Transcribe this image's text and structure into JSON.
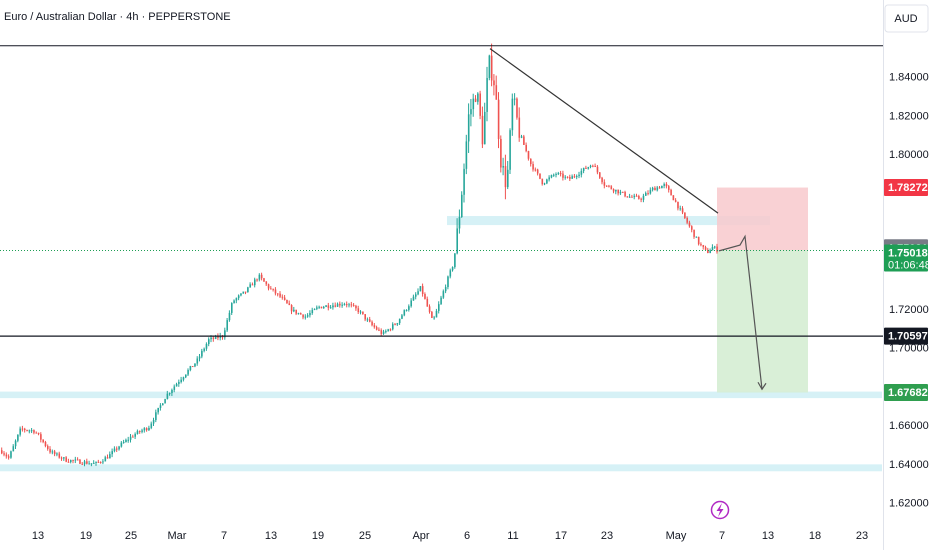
{
  "header": {
    "title": "Euro / Australian Dollar · 4h · PEPPERSTONE",
    "currency": "AUD"
  },
  "colors": {
    "up": "#26a69a",
    "down": "#ef5350",
    "zone": "#c8ecf3",
    "stop": "#f8c9cd",
    "target": "#d5edd3",
    "current": "#1e9e55",
    "stop_label": "#f23645",
    "line": "#131722",
    "tp_label": "#2f9e4f"
  },
  "badges": {
    "stop": "1.78272",
    "entry": "1.75031",
    "current": "1.75018",
    "countdown": "01:06:48",
    "support": "1.70597",
    "target": "1.67682"
  },
  "chart_data": {
    "type": "candlestick",
    "timeframe": "4h",
    "x_ticks": [
      "13",
      "19",
      "25",
      "Mar",
      "7",
      "13",
      "19",
      "25",
      "Apr",
      "6",
      "11",
      "17",
      "23",
      "May",
      "7",
      "13",
      "18",
      "23"
    ],
    "y_ticks": [
      "1.84000",
      "1.82000",
      "1.80000",
      "1.72000",
      "1.70000",
      "1.66000",
      "1.64000",
      "1.62000"
    ],
    "ylim": [
      1.6125,
      1.8605
    ],
    "price_path": [
      [
        0,
        1.647
      ],
      [
        8,
        1.643
      ],
      [
        20,
        1.658
      ],
      [
        34,
        1.657
      ],
      [
        50,
        1.646
      ],
      [
        65,
        1.642
      ],
      [
        80,
        1.641
      ],
      [
        95,
        1.64
      ],
      [
        108,
        1.644
      ],
      [
        118,
        1.649
      ],
      [
        133,
        1.655
      ],
      [
        148,
        1.659
      ],
      [
        165,
        1.675
      ],
      [
        180,
        1.684
      ],
      [
        196,
        1.693
      ],
      [
        208,
        1.704
      ],
      [
        222,
        1.706
      ],
      [
        232,
        1.724
      ],
      [
        245,
        1.729
      ],
      [
        258,
        1.737
      ],
      [
        268,
        1.731
      ],
      [
        280,
        1.726
      ],
      [
        292,
        1.719
      ],
      [
        305,
        1.716
      ],
      [
        318,
        1.721
      ],
      [
        332,
        1.722
      ],
      [
        345,
        1.723
      ],
      [
        358,
        1.719
      ],
      [
        370,
        1.712
      ],
      [
        382,
        1.707
      ],
      [
        396,
        1.713
      ],
      [
        408,
        1.722
      ],
      [
        420,
        1.731
      ],
      [
        432,
        1.713
      ],
      [
        440,
        1.725
      ],
      [
        446,
        1.734
      ],
      [
        453,
        1.744
      ],
      [
        460,
        1.775
      ],
      [
        468,
        1.82
      ],
      [
        476,
        1.833
      ],
      [
        482,
        1.807
      ],
      [
        488,
        1.848
      ],
      [
        494,
        1.836
      ],
      [
        500,
        1.797
      ],
      [
        506,
        1.783
      ],
      [
        512,
        1.83
      ],
      [
        518,
        1.812
      ],
      [
        530,
        1.795
      ],
      [
        542,
        1.785
      ],
      [
        555,
        1.79
      ],
      [
        568,
        1.787
      ],
      [
        580,
        1.791
      ],
      [
        592,
        1.795
      ],
      [
        604,
        1.784
      ],
      [
        616,
        1.781
      ],
      [
        628,
        1.778
      ],
      [
        640,
        1.777
      ],
      [
        652,
        1.782
      ],
      [
        664,
        1.784
      ],
      [
        674,
        1.776
      ],
      [
        686,
        1.765
      ],
      [
        698,
        1.754
      ],
      [
        706,
        1.749
      ],
      [
        712,
        1.752
      ],
      [
        718,
        1.75
      ]
    ],
    "horizontal_lines": [
      1.856,
      1.70597
    ],
    "zones": [
      {
        "from": 1.7654,
        "to": 1.768,
        "x_end": 770
      },
      {
        "from": 1.676,
        "to": 1.6773,
        "x_end": 882
      },
      {
        "from": 1.6382,
        "to": 1.6397,
        "x_end": 882
      }
    ],
    "trendline": [
      [
        490,
        1.8545
      ],
      [
        718,
        1.7695
      ]
    ],
    "position": {
      "entry": 1.7503,
      "stop": 1.78272,
      "target": 1.67682,
      "x_start": 717,
      "x_end": 808
    },
    "projection": [
      [
        719,
        1.75
      ],
      [
        740,
        1.753
      ],
      [
        745,
        1.7575
      ],
      [
        762,
        1.6785
      ]
    ]
  }
}
